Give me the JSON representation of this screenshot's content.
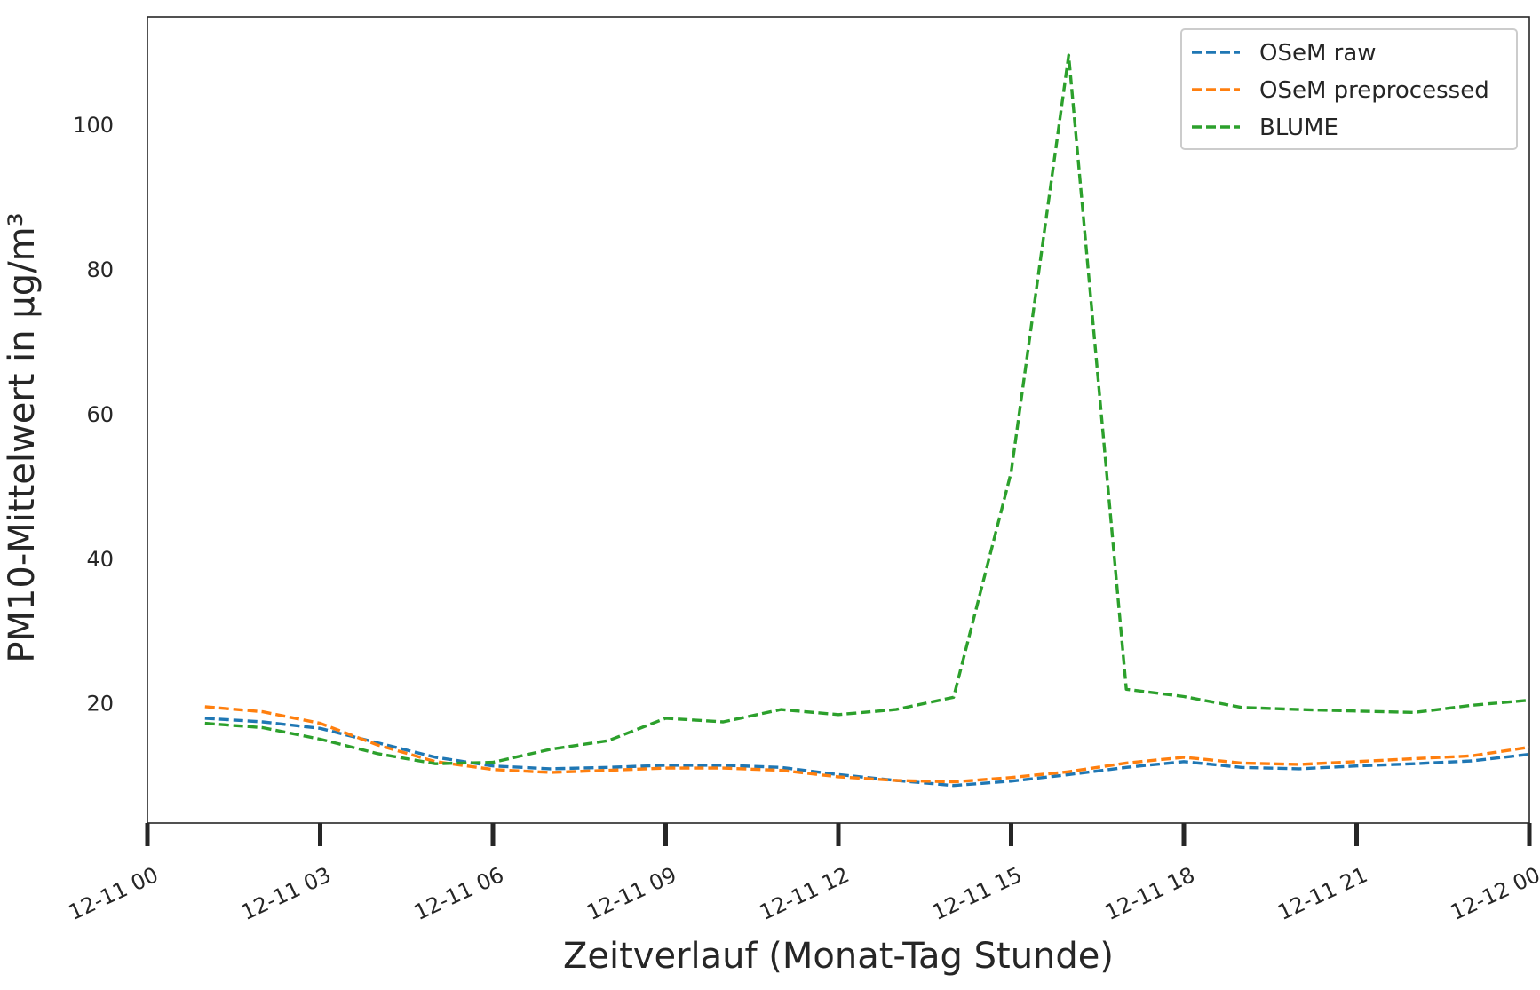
{
  "chart_data": {
    "type": "line",
    "title": "",
    "xlabel": "Zeitverlauf (Monat-Tag Stunde)",
    "ylabel": "PM10-Mittelwert in µg/m³",
    "x": [
      1,
      2,
      3,
      4,
      5,
      6,
      7,
      8,
      9,
      10,
      11,
      12,
      13,
      14,
      15,
      16,
      17,
      18,
      19,
      20,
      21,
      22,
      23,
      24
    ],
    "xlim": [
      0,
      24
    ],
    "ylim": [
      3.5,
      115.0
    ],
    "x_ticks": [
      0,
      3,
      6,
      9,
      12,
      15,
      18,
      21,
      24
    ],
    "x_tick_labels": [
      "12-11 00",
      "12-11 03",
      "12-11 06",
      "12-11 09",
      "12-11 12",
      "12-11 15",
      "12-11 18",
      "12-11 21",
      "12-12 00"
    ],
    "y_ticks": [
      20,
      40,
      60,
      80,
      100
    ],
    "y_tick_labels": [
      "20",
      "40",
      "60",
      "80",
      "100"
    ],
    "grid": false,
    "legend_position": "top-right",
    "series": [
      {
        "name": "OSeM raw",
        "color": "#1f77b4",
        "values": [
          18.0,
          17.5,
          16.6,
          14.6,
          12.6,
          11.4,
          11.0,
          11.2,
          11.5,
          11.5,
          11.2,
          10.2,
          9.4,
          8.7,
          9.3,
          10.2,
          11.2,
          12.0,
          11.2,
          11.0,
          11.4,
          11.7,
          12.1,
          13.0
        ]
      },
      {
        "name": "OSeM preprocessed",
        "color": "#ff7f0e",
        "values": [
          19.6,
          18.9,
          17.3,
          14.3,
          12.0,
          10.9,
          10.5,
          10.8,
          11.1,
          11.1,
          10.8,
          9.9,
          9.4,
          9.2,
          9.8,
          10.6,
          11.8,
          12.6,
          11.8,
          11.6,
          12.0,
          12.4,
          12.8,
          14.0
        ]
      },
      {
        "name": "BLUME",
        "color": "#2ca02c",
        "values": [
          17.3,
          16.7,
          15.1,
          13.1,
          11.7,
          11.9,
          13.7,
          14.9,
          18.0,
          17.5,
          19.2,
          18.5,
          19.2,
          20.9,
          52.0,
          109.7,
          22.0,
          21.0,
          19.5,
          19.2,
          19.0,
          18.8,
          19.8,
          20.5
        ]
      }
    ]
  }
}
